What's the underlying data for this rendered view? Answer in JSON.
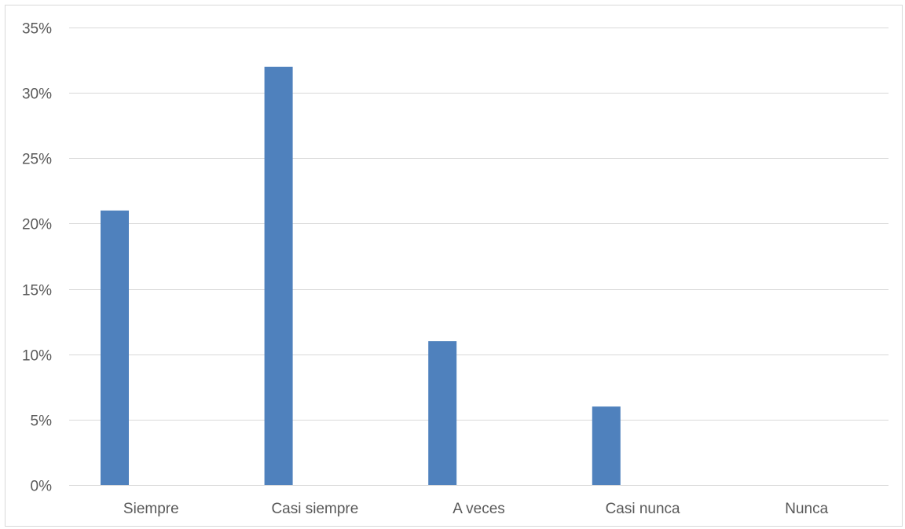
{
  "chart_data": {
    "type": "bar",
    "categories": [
      "Siempre",
      "Casi siempre",
      "A veces",
      "Casi nunca",
      "Nunca"
    ],
    "values": [
      21,
      32,
      11,
      6,
      0
    ],
    "value_unit": "%",
    "ylim": [
      0,
      35
    ],
    "yticks": [
      0,
      5,
      10,
      15,
      20,
      25,
      30,
      35
    ],
    "ytick_labels": [
      "0%",
      "5%",
      "10%",
      "15%",
      "20%",
      "25%",
      "30%",
      "35%"
    ],
    "grid": true,
    "legend": "none",
    "bar_color": "#4f81bd",
    "grid_color": "#d9d9d9"
  }
}
